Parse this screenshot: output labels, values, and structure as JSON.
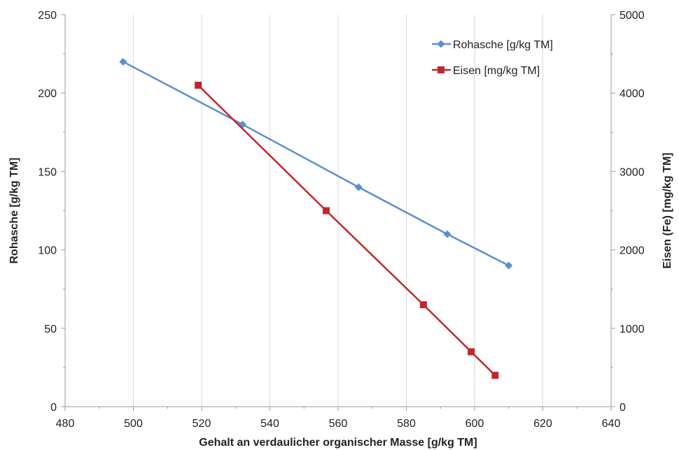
{
  "chart_data": {
    "type": "line",
    "title": "",
    "xlabel": "Gehalt an verdaulicher organischer Masse [g/kg TM]",
    "ylabel": "Rohasche [g/kg TM]",
    "y2label": "Eisen (Fe) [mg/kg TM]",
    "xlim": [
      480,
      640
    ],
    "ylim": [
      0,
      250
    ],
    "y2lim": [
      0,
      5000
    ],
    "xticks": [
      480,
      500,
      520,
      540,
      560,
      580,
      600,
      620,
      640
    ],
    "yticks": [
      0,
      50,
      100,
      150,
      200,
      250
    ],
    "y2ticks": [
      0,
      1000,
      2000,
      3000,
      4000,
      5000
    ],
    "grid": "vertical",
    "legend_position": "top-right",
    "series": [
      {
        "name": "Rohasche [g/kg TM]",
        "axis": "left",
        "color": "#5b8fd0",
        "marker": "diamond",
        "x": [
          497,
          532,
          566,
          592,
          610
        ],
        "y": [
          220,
          180,
          140,
          110,
          90
        ]
      },
      {
        "name": "Eisen [mg/kg TM]",
        "axis": "right",
        "color": "#c0282d",
        "marker": "square",
        "x": [
          519,
          556.5,
          585,
          599,
          606
        ],
        "y": [
          4100,
          2500,
          1300,
          700,
          400
        ]
      }
    ]
  }
}
